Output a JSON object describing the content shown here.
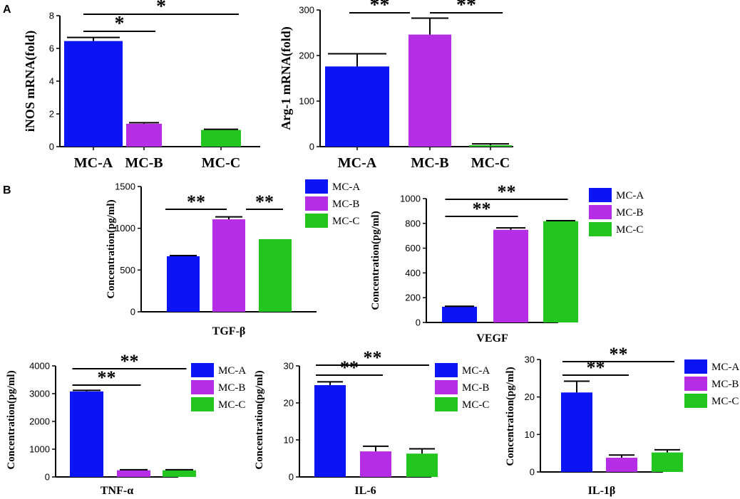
{
  "panel_labels": [
    "A",
    "B"
  ],
  "colors": {
    "MC-A": "#0a14f5",
    "MC-B": "#b62de6",
    "MC-C": "#22c61f",
    "axis": "#000000",
    "error": "#000000"
  },
  "chart_data": [
    {
      "id": "inos",
      "type": "bar",
      "panel": "A",
      "categories": [
        "MC-A",
        "MC-B",
        "MC-C"
      ],
      "values": [
        6.45,
        1.4,
        1.02
      ],
      "errors": [
        0.22,
        0.06,
        0.04
      ],
      "ylabel": "iNOS mRNA(fold)",
      "xlabel": "",
      "ylim": [
        0,
        8
      ],
      "yticks": [
        0,
        2,
        4,
        6,
        8
      ],
      "show_category_ticks": true,
      "legend": null,
      "significance": [
        {
          "from": 0,
          "to": 1,
          "label": "*"
        },
        {
          "from": 0,
          "to": 2,
          "label": "*"
        }
      ]
    },
    {
      "id": "arg1",
      "type": "bar",
      "panel": "A",
      "categories": [
        "MC-A",
        "MC-B",
        "MC-C"
      ],
      "values": [
        176,
        246,
        3
      ],
      "errors": [
        28,
        36,
        3
      ],
      "ylabel": "Arg-1 mRNA(fold)",
      "xlabel": "",
      "ylim": [
        0,
        300
      ],
      "yticks": [
        0,
        100,
        200,
        300
      ],
      "show_category_ticks": true,
      "legend": null,
      "significance": [
        {
          "from": 0,
          "to": 1,
          "label": "**"
        },
        {
          "from": 1,
          "to": 2,
          "label": "**"
        }
      ]
    },
    {
      "id": "tgfb",
      "type": "bar",
      "panel": "B",
      "categories": [
        "MC-A",
        "MC-B",
        "MC-C"
      ],
      "values": [
        665,
        1107,
        870
      ],
      "errors": [
        8,
        30,
        0
      ],
      "ylabel": "Concentration(pg/ml)",
      "xlabel": "TGF-β",
      "ylim": [
        0,
        1500
      ],
      "yticks": [
        0,
        500,
        1000,
        1500
      ],
      "show_category_ticks": false,
      "legend": [
        "MC-A",
        "MC-B",
        "MC-C"
      ],
      "significance": [
        {
          "from": 0,
          "to": 1,
          "label": "**"
        },
        {
          "from": 1,
          "to": 2,
          "label": "**"
        }
      ]
    },
    {
      "id": "vegf",
      "type": "bar",
      "panel": "B",
      "categories": [
        "MC-A",
        "MC-B",
        "MC-C"
      ],
      "values": [
        127,
        748,
        818
      ],
      "errors": [
        4,
        16,
        4
      ],
      "ylabel": "Concentration(pg/ml)",
      "xlabel": "VEGF",
      "ylim": [
        0,
        1000
      ],
      "yticks": [
        0,
        200,
        400,
        600,
        800,
        1000
      ],
      "show_category_ticks": false,
      "legend": [
        "MC-A",
        "MC-B",
        "MC-C"
      ],
      "significance": [
        {
          "from": 0,
          "to": 1,
          "label": "**"
        },
        {
          "from": 0,
          "to": 2,
          "label": "**"
        }
      ]
    },
    {
      "id": "tnfa",
      "type": "bar",
      "panel": "B",
      "categories": [
        "MC-A",
        "MC-B",
        "MC-C"
      ],
      "values": [
        3080,
        240,
        240
      ],
      "errors": [
        40,
        20,
        20
      ],
      "ylabel": "Concentration(pg/ml)",
      "xlabel": "TNF-α",
      "ylim": [
        0,
        4000
      ],
      "yticks": [
        0,
        1000,
        2000,
        3000,
        4000
      ],
      "show_category_ticks": false,
      "legend": [
        "MC-A",
        "MC-B",
        "MC-C"
      ],
      "significance": [
        {
          "from": 0,
          "to": 1,
          "label": "**"
        },
        {
          "from": 0,
          "to": 2,
          "label": "**"
        }
      ]
    },
    {
      "id": "il6",
      "type": "bar",
      "panel": "B",
      "categories": [
        "MC-A",
        "MC-B",
        "MC-C"
      ],
      "values": [
        24.8,
        6.9,
        6.3
      ],
      "errors": [
        0.9,
        1.4,
        1.3
      ],
      "ylabel": "Concentration(pg/ml)",
      "xlabel": "IL-6",
      "ylim": [
        0,
        30
      ],
      "yticks": [
        0,
        10,
        20,
        30
      ],
      "show_category_ticks": false,
      "legend": [
        "MC-A",
        "MC-B",
        "MC-C"
      ],
      "significance": [
        {
          "from": 0,
          "to": 1,
          "label": "**"
        },
        {
          "from": 0,
          "to": 2,
          "label": "**"
        }
      ]
    },
    {
      "id": "il1b",
      "type": "bar",
      "panel": "B",
      "categories": [
        "MC-A",
        "MC-B",
        "MC-C"
      ],
      "values": [
        21.2,
        3.8,
        5.2
      ],
      "errors": [
        3.0,
        0.7,
        0.7
      ],
      "ylabel": "Concentration(pg/ml)",
      "xlabel": "IL-1β",
      "ylim": [
        0,
        30
      ],
      "yticks": [
        0,
        10,
        20,
        30
      ],
      "show_category_ticks": false,
      "legend": [
        "MC-A",
        "MC-B",
        "MC-C"
      ],
      "significance": [
        {
          "from": 0,
          "to": 1,
          "label": "**"
        },
        {
          "from": 0,
          "to": 2,
          "label": "**"
        }
      ]
    }
  ]
}
